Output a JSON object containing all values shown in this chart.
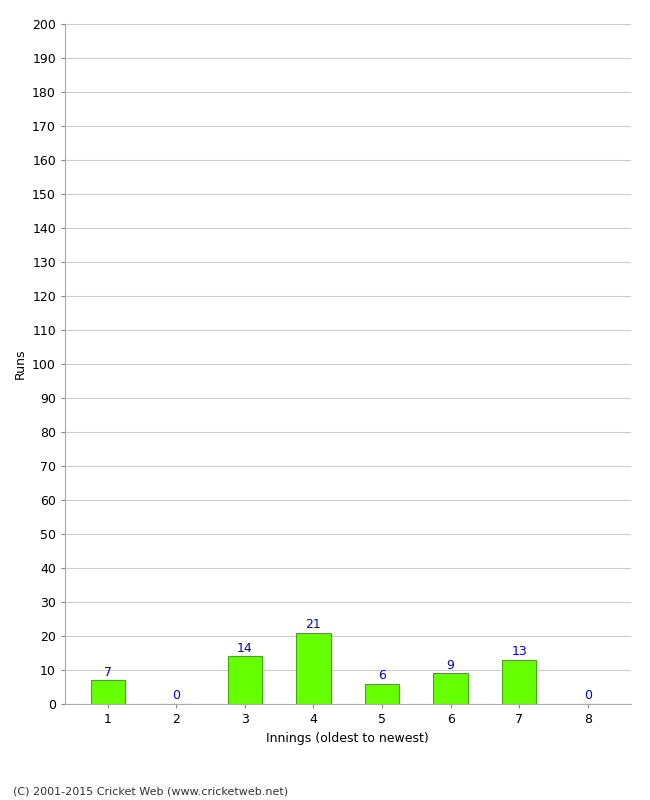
{
  "categories": [
    1,
    2,
    3,
    4,
    5,
    6,
    7,
    8
  ],
  "values": [
    7,
    0,
    14,
    21,
    6,
    9,
    13,
    0
  ],
  "bar_color": "#66ff00",
  "bar_edge_color": "#44aa00",
  "value_label_color": "#0000cc",
  "xlabel": "Innings (oldest to newest)",
  "ylabel": "Runs",
  "ylim": [
    0,
    200
  ],
  "ytick_step": 10,
  "footnote": "(C) 2001-2015 Cricket Web (www.cricketweb.net)",
  "background_color": "#ffffff",
  "grid_color": "#cccccc"
}
